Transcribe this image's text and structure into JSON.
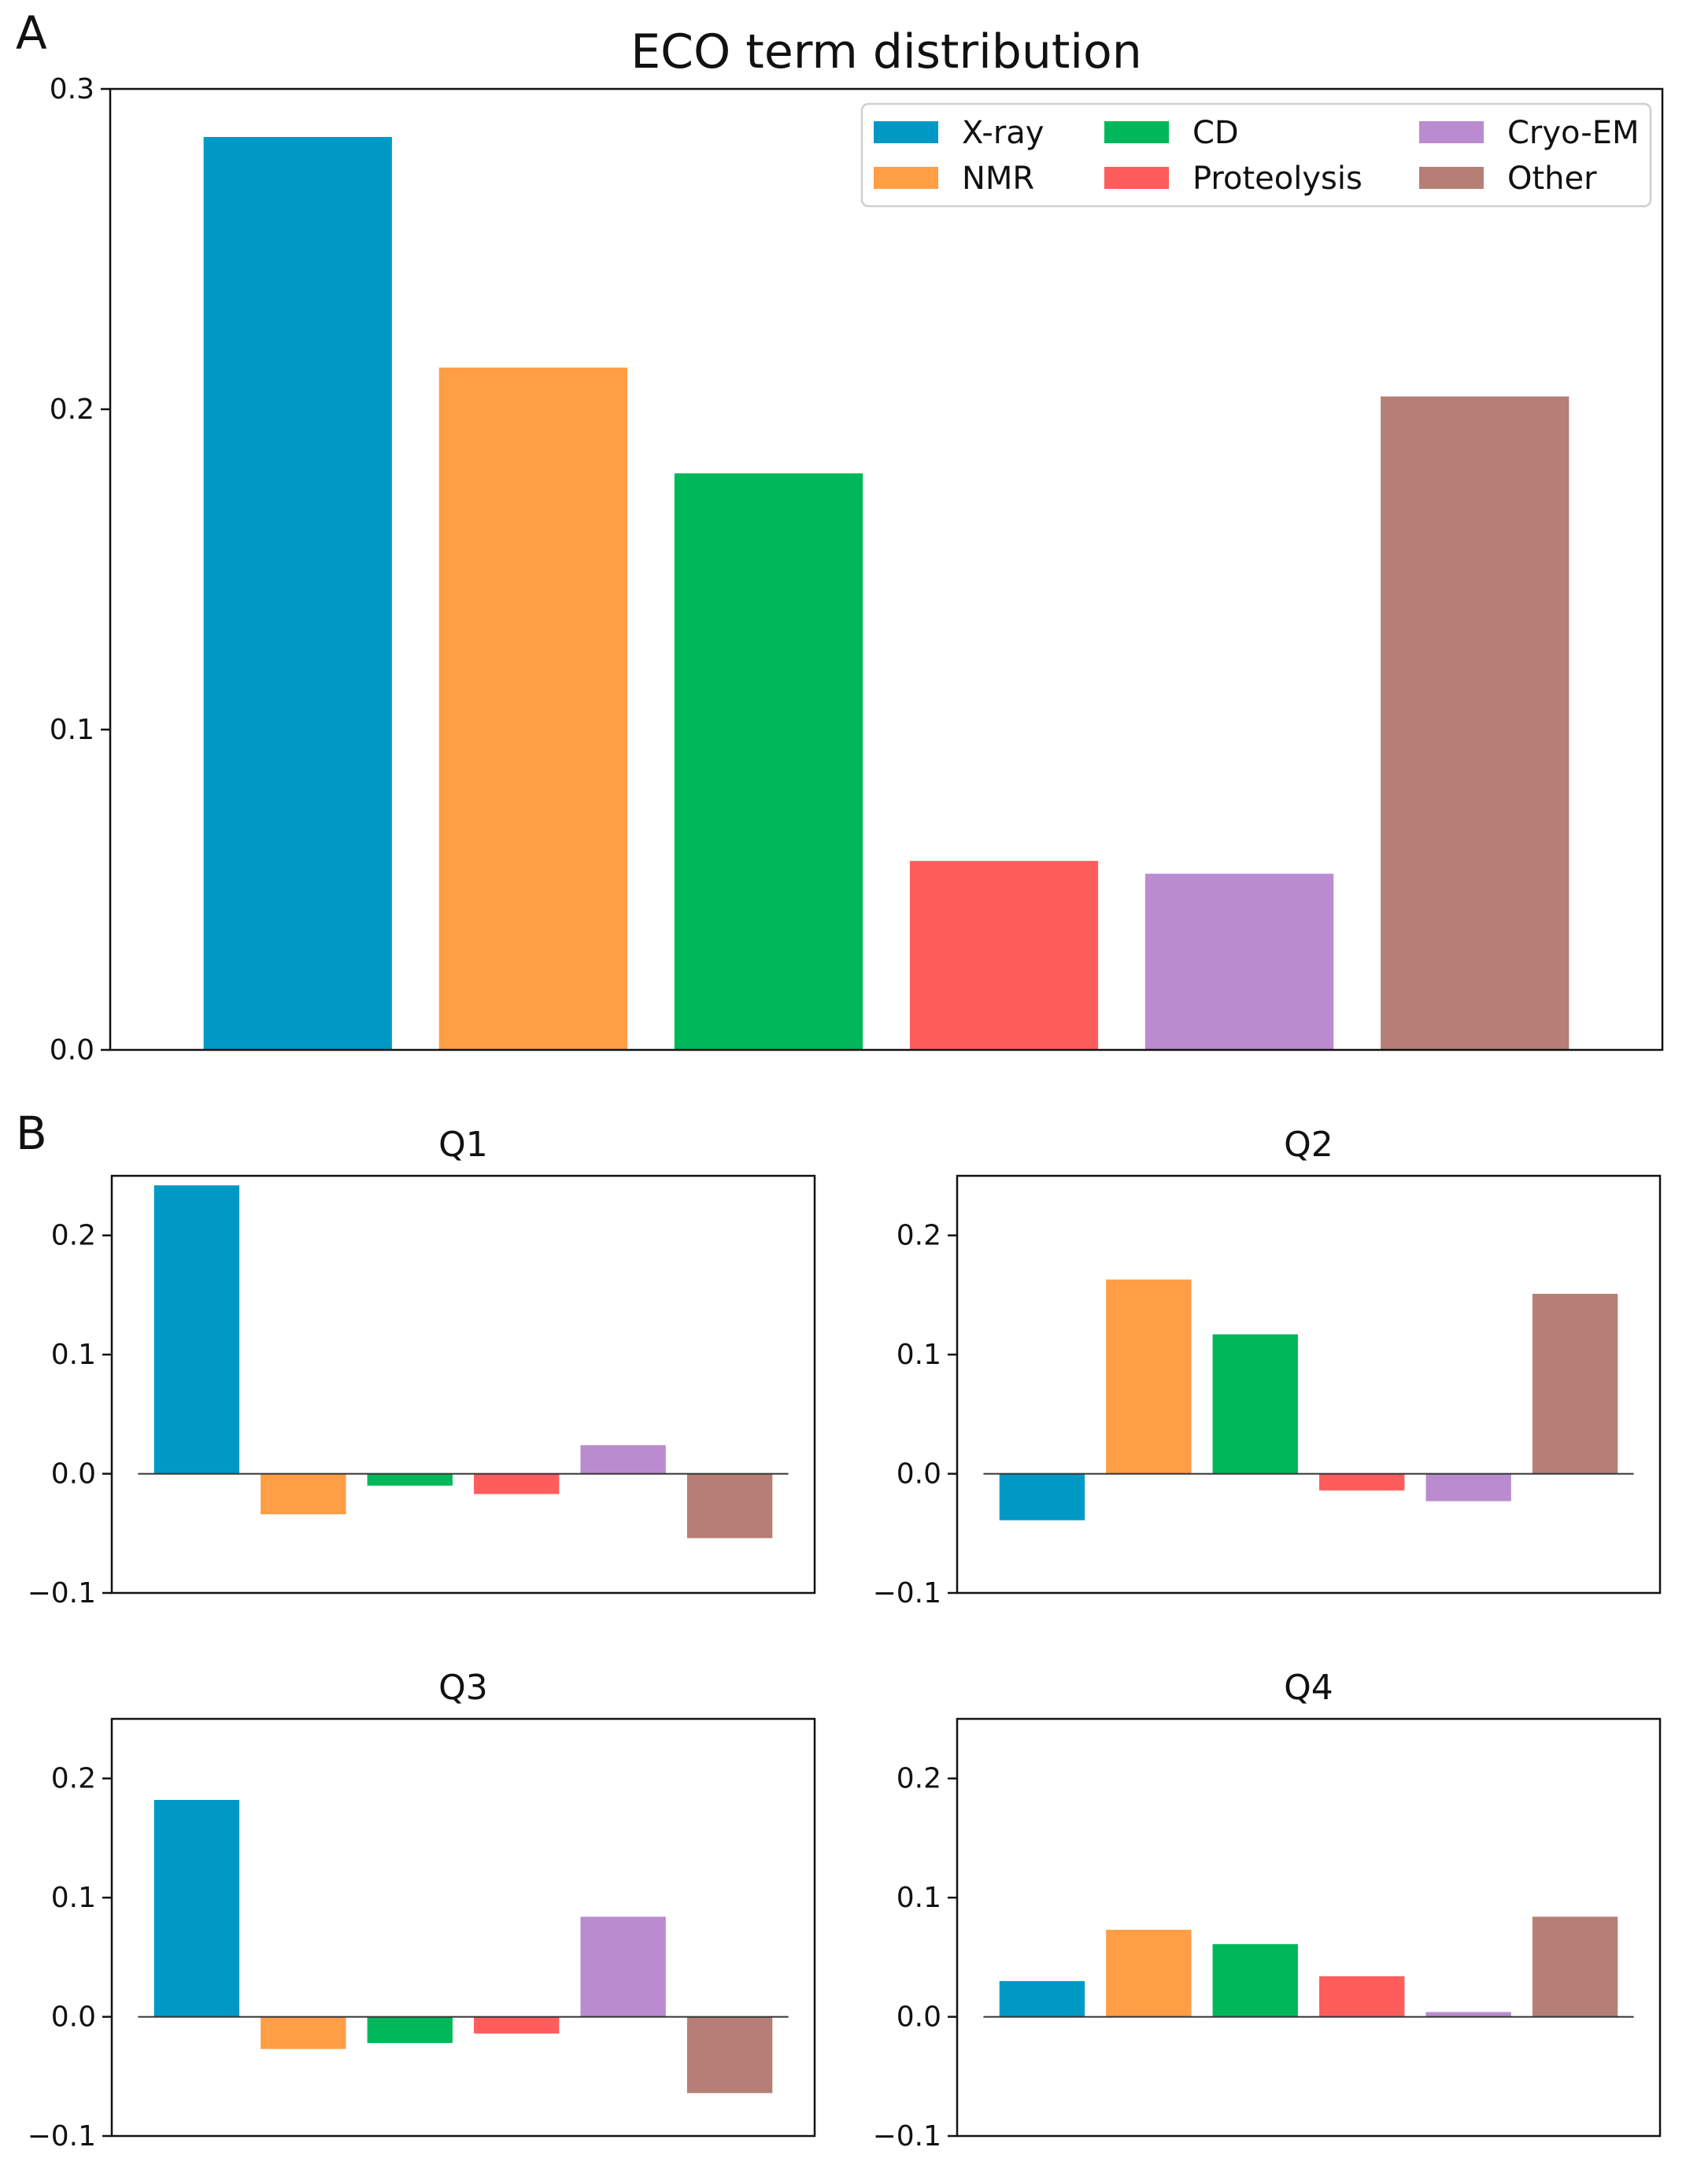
{
  "panel_labels": {
    "a": "A",
    "b": "B"
  },
  "colors": {
    "X-ray": "#0099c6",
    "NMR": "#ff9e44",
    "CD": "#00b85a",
    "Proteolysis": "#ff5c5c",
    "Cryo-EM": "#ba8ccf",
    "Other": "#b57f76"
  },
  "chart_data": [
    {
      "id": "A",
      "type": "bar",
      "title": "ECO term distribution",
      "categories": [
        "X-ray",
        "NMR",
        "CD",
        "Proteolysis",
        "Cryo-EM",
        "Other"
      ],
      "values": [
        0.285,
        0.213,
        0.18,
        0.059,
        0.055,
        0.204
      ],
      "ylim": [
        0,
        0.3
      ],
      "yticks": [
        "0.0",
        "0.1",
        "0.2",
        "0.3"
      ],
      "ytick_values": [
        0,
        0.1,
        0.2,
        0.3
      ],
      "legend": {
        "placement": "top-right",
        "entries": [
          "X-ray",
          "NMR",
          "CD",
          "Proteolysis",
          "Cryo-EM",
          "Other"
        ]
      },
      "grid": false
    },
    {
      "id": "Q1",
      "type": "bar",
      "title": "Q1",
      "categories": [
        "X-ray",
        "NMR",
        "CD",
        "Proteolysis",
        "Cryo-EM",
        "Other"
      ],
      "values": [
        0.242,
        -0.034,
        -0.01,
        -0.017,
        0.024,
        -0.054
      ],
      "ylim": [
        -0.1,
        0.25
      ],
      "yticks": [
        "−0.1",
        "0.0",
        "0.1",
        "0.2"
      ],
      "ytick_values": [
        -0.1,
        0,
        0.1,
        0.2
      ],
      "zero_line": true
    },
    {
      "id": "Q2",
      "type": "bar",
      "title": "Q2",
      "categories": [
        "X-ray",
        "NMR",
        "CD",
        "Proteolysis",
        "Cryo-EM",
        "Other"
      ],
      "values": [
        -0.039,
        0.163,
        0.117,
        -0.014,
        -0.023,
        0.151
      ],
      "ylim": [
        -0.1,
        0.25
      ],
      "yticks": [
        "−0.1",
        "0.0",
        "0.1",
        "0.2"
      ],
      "ytick_values": [
        -0.1,
        0,
        0.1,
        0.2
      ],
      "zero_line": true
    },
    {
      "id": "Q3",
      "type": "bar",
      "title": "Q3",
      "categories": [
        "X-ray",
        "NMR",
        "CD",
        "Proteolysis",
        "Cryo-EM",
        "Other"
      ],
      "values": [
        0.182,
        -0.027,
        -0.022,
        -0.014,
        0.084,
        -0.064
      ],
      "ylim": [
        -0.1,
        0.25
      ],
      "yticks": [
        "−0.1",
        "0.0",
        "0.1",
        "0.2"
      ],
      "ytick_values": [
        -0.1,
        0,
        0.1,
        0.2
      ],
      "zero_line": true
    },
    {
      "id": "Q4",
      "type": "bar",
      "title": "Q4",
      "categories": [
        "X-ray",
        "NMR",
        "CD",
        "Proteolysis",
        "Cryo-EM",
        "Other"
      ],
      "values": [
        0.03,
        0.073,
        0.061,
        0.034,
        0.004,
        0.084
      ],
      "ylim": [
        -0.1,
        0.25
      ],
      "yticks": [
        "−0.1",
        "0.0",
        "0.1",
        "0.2"
      ],
      "ytick_values": [
        -0.1,
        0,
        0.1,
        0.2
      ],
      "zero_line": true
    }
  ]
}
